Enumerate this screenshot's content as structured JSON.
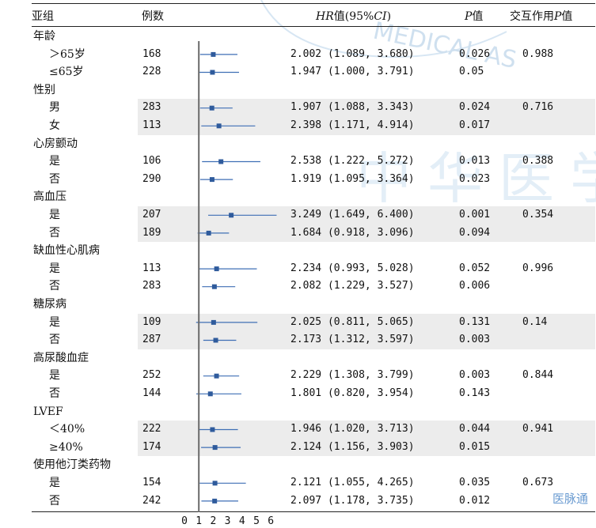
{
  "header": {
    "col_subgroup": "亚组",
    "col_cases": "例数",
    "col_hr_prefix": "HR",
    "col_hr_mid": "值(95%",
    "col_hr_ci": "CI",
    "col_hr_suffix": ")",
    "col_p_italic": "P",
    "col_p_suffix": "值",
    "col_int_prefix": "交互作用",
    "col_int_italic": "P",
    "col_int_suffix": "值"
  },
  "watermark": {
    "text": "MEDICAL AS",
    "chars": "中华医学",
    "logo_text": "医脉通"
  },
  "chart_data": {
    "type": "forest",
    "x_ticks": [
      "0",
      "1",
      "2",
      "3",
      "4",
      "5",
      "6"
    ],
    "xlim": [
      0,
      6
    ],
    "reference_line": 1,
    "rows": [
      {
        "kind": "group",
        "label": "年龄"
      },
      {
        "kind": "item",
        "label": "＞65岁",
        "n": "168",
        "hr": 2.002,
        "lo": 1.089,
        "hi": 3.68,
        "hr_text": "2.002 (1.089, 3.680)",
        "p": "0.026",
        "p_int": "0.988",
        "band": false
      },
      {
        "kind": "item",
        "label": "≤65岁",
        "n": "228",
        "hr": 1.947,
        "lo": 1.0,
        "hi": 3.791,
        "hr_text": "1.947 (1.000, 3.791)",
        "p": "0.05",
        "p_int": "",
        "band": false
      },
      {
        "kind": "group",
        "label": "性别"
      },
      {
        "kind": "item",
        "label": "男",
        "n": "283",
        "hr": 1.907,
        "lo": 1.088,
        "hi": 3.343,
        "hr_text": "1.907 (1.088, 3.343)",
        "p": "0.024",
        "p_int": "0.716",
        "band": true
      },
      {
        "kind": "item",
        "label": "女",
        "n": "113",
        "hr": 2.398,
        "lo": 1.171,
        "hi": 4.914,
        "hr_text": "2.398 (1.171, 4.914)",
        "p": "0.017",
        "p_int": "",
        "band": true
      },
      {
        "kind": "group",
        "label": "心房颤动"
      },
      {
        "kind": "item",
        "label": "是",
        "n": "106",
        "hr": 2.538,
        "lo": 1.222,
        "hi": 5.272,
        "hr_text": "2.538 (1.222, 5.272)",
        "p": "0.013",
        "p_int": "0.388",
        "band": false
      },
      {
        "kind": "item",
        "label": "否",
        "n": "290",
        "hr": 1.919,
        "lo": 1.095,
        "hi": 3.364,
        "hr_text": "1.919 (1.095, 3.364)",
        "p": "0.023",
        "p_int": "",
        "band": false
      },
      {
        "kind": "group",
        "label": "高血压"
      },
      {
        "kind": "item",
        "label": "是",
        "n": "207",
        "hr": 3.249,
        "lo": 1.649,
        "hi": 6.4,
        "hr_text": "3.249 (1.649, 6.400)",
        "p": "0.001",
        "p_int": "0.354",
        "band": true
      },
      {
        "kind": "item",
        "label": "否",
        "n": "189",
        "hr": 1.684,
        "lo": 0.918,
        "hi": 3.096,
        "hr_text": "1.684 (0.918, 3.096)",
        "p": "0.094",
        "p_int": "",
        "band": true
      },
      {
        "kind": "group",
        "label": "缺血性心肌病"
      },
      {
        "kind": "item",
        "label": "是",
        "n": "113",
        "hr": 2.234,
        "lo": 0.993,
        "hi": 5.028,
        "hr_text": "2.234 (0.993, 5.028)",
        "p": "0.052",
        "p_int": "0.996",
        "band": false
      },
      {
        "kind": "item",
        "label": "否",
        "n": "283",
        "hr": 2.082,
        "lo": 1.229,
        "hi": 3.527,
        "hr_text": "2.082 (1.229, 3.527)",
        "p": "0.006",
        "p_int": "",
        "band": false
      },
      {
        "kind": "group",
        "label": "糖尿病"
      },
      {
        "kind": "item",
        "label": "是",
        "n": "109",
        "hr": 2.025,
        "lo": 0.811,
        "hi": 5.065,
        "hr_text": "2.025 (0.811, 5.065)",
        "p": "0.131",
        "p_int": "0.14",
        "band": true
      },
      {
        "kind": "item",
        "label": "否",
        "n": "287",
        "hr": 2.173,
        "lo": 1.312,
        "hi": 3.597,
        "hr_text": "2.173 (1.312, 3.597)",
        "p": "0.003",
        "p_int": "",
        "band": true
      },
      {
        "kind": "group",
        "label": "高尿酸血症"
      },
      {
        "kind": "item",
        "label": "是",
        "n": "252",
        "hr": 2.229,
        "lo": 1.308,
        "hi": 3.799,
        "hr_text": "2.229 (1.308, 3.799)",
        "p": "0.003",
        "p_int": "0.844",
        "band": false
      },
      {
        "kind": "item",
        "label": "否",
        "n": "144",
        "hr": 1.801,
        "lo": 0.82,
        "hi": 3.954,
        "hr_text": "1.801 (0.820, 3.954)",
        "p": "0.143",
        "p_int": "",
        "band": false
      },
      {
        "kind": "group",
        "label": "LVEF"
      },
      {
        "kind": "item",
        "label": "＜40%",
        "n": "222",
        "hr": 1.946,
        "lo": 1.02,
        "hi": 3.713,
        "hr_text": "1.946 (1.020, 3.713)",
        "p": "0.044",
        "p_int": "0.941",
        "band": true
      },
      {
        "kind": "item",
        "label": "≥40%",
        "n": "174",
        "hr": 2.124,
        "lo": 1.156,
        "hi": 3.903,
        "hr_text": "2.124 (1.156, 3.903)",
        "p": "0.015",
        "p_int": "",
        "band": true
      },
      {
        "kind": "group",
        "label": "使用他汀类药物"
      },
      {
        "kind": "item",
        "label": "是",
        "n": "154",
        "hr": 2.121,
        "lo": 1.055,
        "hi": 4.265,
        "hr_text": "2.121 (1.055, 4.265)",
        "p": "0.035",
        "p_int": "0.673",
        "band": false
      },
      {
        "kind": "item",
        "label": "否",
        "n": "242",
        "hr": 2.097,
        "lo": 1.178,
        "hi": 3.735,
        "hr_text": "2.097 (1.178, 3.735)",
        "p": "0.012",
        "p_int": "",
        "band": false
      }
    ],
    "colors": {
      "marker": "#2f5b9c",
      "ci_line": "#3f6fb5",
      "band": "#ececec",
      "ref_line": "#6a6a6a"
    }
  }
}
